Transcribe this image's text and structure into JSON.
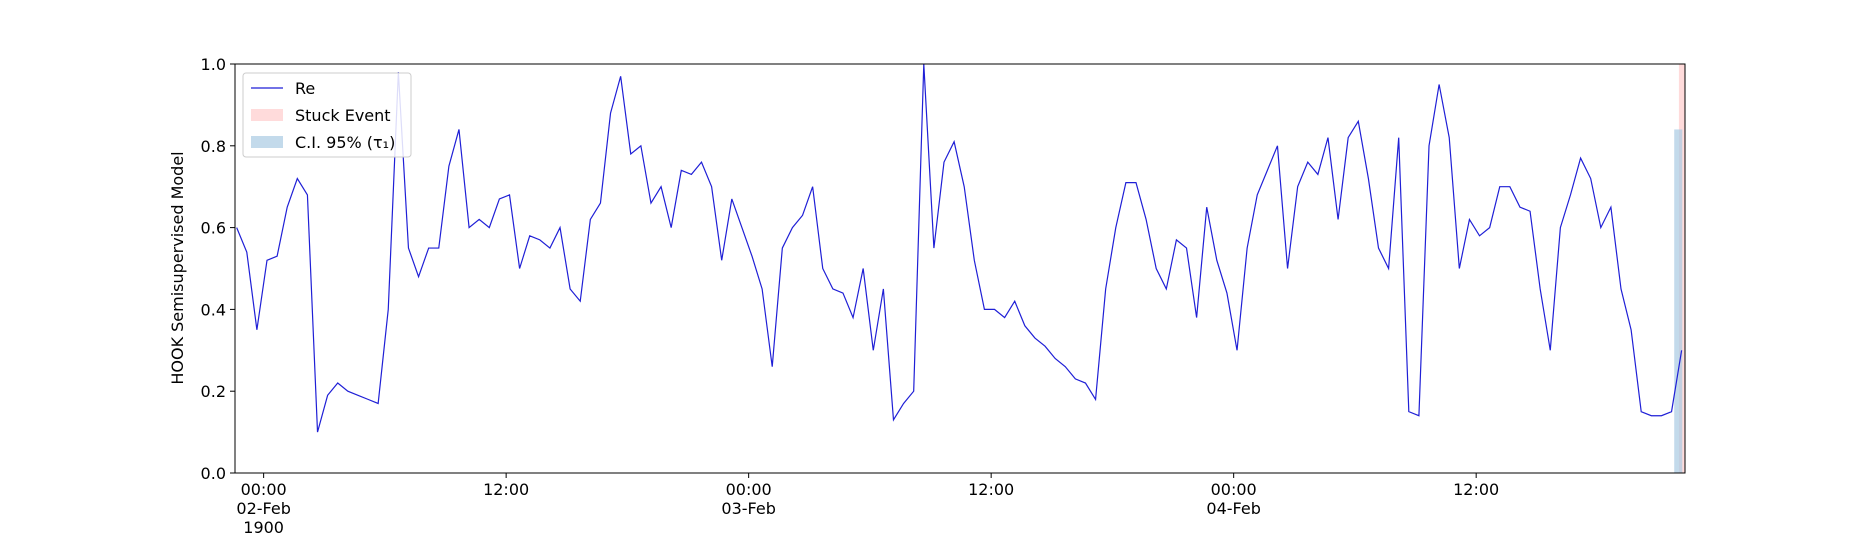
{
  "chart_data": {
    "type": "line",
    "ylabel": "HOOK Semisupervised Model",
    "ylim": [
      0,
      1
    ],
    "yticks": [
      {
        "value": 0,
        "label": "0.0"
      },
      0.2,
      0.4,
      0.6,
      0.8,
      {
        "value": 1,
        "label": "1.0"
      }
    ],
    "xlim": [
      "1900-02-01 22:35",
      "1900-02-04 22:20"
    ],
    "xticks": [
      {
        "value": "1900-02-02 00:00",
        "label": "00:00\n02-Feb\n1900"
      },
      {
        "value": "1900-02-02 12:00",
        "label": "12:00"
      },
      {
        "value": "1900-02-03 00:00",
        "label": "00:00\n03-Feb"
      },
      {
        "value": "1900-02-03 12:00",
        "label": "12:00"
      },
      {
        "value": "1900-02-04 00:00",
        "label": "00:00\n04-Feb"
      },
      {
        "value": "1900-02-04 12:00",
        "label": "12:00"
      }
    ],
    "legend": "upper left",
    "x": [
      "1900-02-01 22:40",
      "1900-02-01 23:10",
      "1900-02-01 23:40",
      "1900-02-02 00:10",
      "1900-02-02 00:40",
      "1900-02-02 01:10",
      "1900-02-02 01:40",
      "1900-02-02 02:10",
      "1900-02-02 02:40",
      "1900-02-02 03:10",
      "1900-02-02 03:40",
      "1900-02-02 04:10",
      "1900-02-02 04:40",
      "1900-02-02 05:10",
      "1900-02-02 05:40",
      "1900-02-02 06:10",
      "1900-02-02 06:40",
      "1900-02-02 07:10",
      "1900-02-02 07:40",
      "1900-02-02 08:10",
      "1900-02-02 08:40",
      "1900-02-02 09:10",
      "1900-02-02 09:40",
      "1900-02-02 10:10",
      "1900-02-02 10:40",
      "1900-02-02 11:10",
      "1900-02-02 11:40",
      "1900-02-02 12:10",
      "1900-02-02 12:40",
      "1900-02-02 13:10",
      "1900-02-02 13:40",
      "1900-02-02 14:10",
      "1900-02-02 14:40",
      "1900-02-02 15:10",
      "1900-02-02 15:40",
      "1900-02-02 16:10",
      "1900-02-02 16:40",
      "1900-02-02 17:10",
      "1900-02-02 17:40",
      "1900-02-02 18:10",
      "1900-02-02 18:40",
      "1900-02-02 19:10",
      "1900-02-02 19:40",
      "1900-02-02 20:10",
      "1900-02-02 20:40",
      "1900-02-02 21:10",
      "1900-02-02 21:40",
      "1900-02-02 22:10",
      "1900-02-02 22:40",
      "1900-02-02 23:10",
      "1900-02-02 23:40",
      "1900-02-03 00:10",
      "1900-02-03 00:40",
      "1900-02-03 01:10",
      "1900-02-03 01:40",
      "1900-02-03 02:10",
      "1900-02-03 02:40",
      "1900-02-03 03:10",
      "1900-02-03 03:40",
      "1900-02-03 04:10",
      "1900-02-03 04:40",
      "1900-02-03 05:10",
      "1900-02-03 05:40",
      "1900-02-03 06:10",
      "1900-02-03 06:40",
      "1900-02-03 07:10",
      "1900-02-03 07:40",
      "1900-02-03 08:10",
      "1900-02-03 08:40",
      "1900-02-03 09:10",
      "1900-02-03 09:40",
      "1900-02-03 10:10",
      "1900-02-03 10:40",
      "1900-02-03 11:10",
      "1900-02-03 11:40",
      "1900-02-03 12:10",
      "1900-02-03 12:40",
      "1900-02-03 13:10",
      "1900-02-03 13:40",
      "1900-02-03 14:10",
      "1900-02-03 14:40",
      "1900-02-03 15:10",
      "1900-02-03 15:40",
      "1900-02-03 16:10",
      "1900-02-03 16:40",
      "1900-02-03 17:10",
      "1900-02-03 17:40",
      "1900-02-03 18:10",
      "1900-02-03 18:40",
      "1900-02-03 19:10",
      "1900-02-03 19:40",
      "1900-02-03 20:10",
      "1900-02-03 20:40",
      "1900-02-03 21:10",
      "1900-02-03 21:40",
      "1900-02-03 22:10",
      "1900-02-03 22:40",
      "1900-02-03 23:10",
      "1900-02-03 23:40",
      "1900-02-04 00:10",
      "1900-02-04 00:40",
      "1900-02-04 01:10",
      "1900-02-04 01:40",
      "1900-02-04 02:10",
      "1900-02-04 02:40",
      "1900-02-04 03:10",
      "1900-02-04 03:40",
      "1900-02-04 04:10",
      "1900-02-04 04:40",
      "1900-02-04 05:10",
      "1900-02-04 05:40",
      "1900-02-04 06:10",
      "1900-02-04 06:40",
      "1900-02-04 07:10",
      "1900-02-04 07:40",
      "1900-02-04 08:10",
      "1900-02-04 08:40",
      "1900-02-04 09:10",
      "1900-02-04 09:40",
      "1900-02-04 10:10",
      "1900-02-04 10:40",
      "1900-02-04 11:10",
      "1900-02-04 11:40",
      "1900-02-04 12:10",
      "1900-02-04 12:40",
      "1900-02-04 13:10",
      "1900-02-04 13:40",
      "1900-02-04 14:10",
      "1900-02-04 14:40",
      "1900-02-04 15:10",
      "1900-02-04 15:40",
      "1900-02-04 16:10",
      "1900-02-04 16:40",
      "1900-02-04 17:10",
      "1900-02-04 17:40",
      "1900-02-04 18:10",
      "1900-02-04 18:40",
      "1900-02-04 19:10",
      "1900-02-04 19:40",
      "1900-02-04 20:10",
      "1900-02-04 20:40",
      "1900-02-04 21:10",
      "1900-02-04 21:40",
      "1900-02-04 22:10"
    ],
    "series": [
      {
        "name": "Re",
        "color": "#1f1fd6",
        "values": [
          0.6,
          0.54,
          0.35,
          0.52,
          0.53,
          0.65,
          0.72,
          0.68,
          0.1,
          0.19,
          0.22,
          0.2,
          0.19,
          0.18,
          0.17,
          0.4,
          0.98,
          0.55,
          0.48,
          0.55,
          0.55,
          0.75,
          0.84,
          0.6,
          0.62,
          0.6,
          0.67,
          0.68,
          0.5,
          0.58,
          0.57,
          0.55,
          0.6,
          0.45,
          0.42,
          0.62,
          0.66,
          0.88,
          0.97,
          0.78,
          0.8,
          0.66,
          0.7,
          0.6,
          0.74,
          0.73,
          0.76,
          0.7,
          0.52,
          0.67,
          0.6,
          0.53,
          0.45,
          0.26,
          0.55,
          0.6,
          0.63,
          0.7,
          0.5,
          0.45,
          0.44,
          0.38,
          0.5,
          0.3,
          0.45,
          0.13,
          0.17,
          0.2,
          1.0,
          0.55,
          0.76,
          0.81,
          0.7,
          0.52,
          0.4,
          0.4,
          0.38,
          0.42,
          0.36,
          0.33,
          0.31,
          0.28,
          0.26,
          0.23,
          0.22,
          0.18,
          0.45,
          0.6,
          0.71,
          0.71,
          0.62,
          0.5,
          0.45,
          0.57,
          0.55,
          0.38,
          0.65,
          0.52,
          0.44,
          0.3,
          0.55,
          0.68,
          0.74,
          0.8,
          0.5,
          0.7,
          0.76,
          0.73,
          0.82,
          0.62,
          0.82,
          0.86,
          0.72,
          0.55,
          0.5,
          0.82,
          0.15,
          0.14,
          0.8,
          0.95,
          0.82,
          0.5,
          0.62,
          0.58,
          0.6,
          0.7,
          0.7,
          0.65,
          0.64,
          0.45,
          0.3,
          0.6,
          0.68,
          0.77,
          0.72,
          0.6,
          0.65,
          0.45,
          0.35,
          0.15,
          0.14,
          0.14,
          0.15,
          0.3
        ]
      }
    ],
    "spans": [
      {
        "name": "Stuck Event",
        "color": "#ffcccc",
        "start": "1900-02-04 22:02",
        "end": "1900-02-04 22:20"
      },
      {
        "name": "C.I. 95% (τ₁)",
        "color": "#a9cbe3",
        "start": "1900-02-04 21:48",
        "end": "1900-02-04 22:12",
        "top": 0.84
      }
    ]
  }
}
